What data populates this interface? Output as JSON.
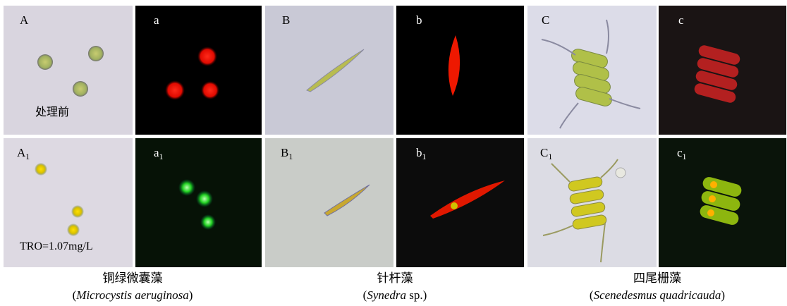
{
  "panels": {
    "A": {
      "label": "A",
      "note": "处理前"
    },
    "a": {
      "label": "a"
    },
    "B": {
      "label": "B"
    },
    "b": {
      "label": "b"
    },
    "C": {
      "label": "C"
    },
    "c": {
      "label": "c"
    },
    "A1": {
      "label": "A",
      "sub": "1",
      "note": "TRO=1.07mg/L"
    },
    "a1": {
      "label": "a",
      "sub": "1"
    },
    "B1": {
      "label": "B",
      "sub": "1"
    },
    "b1": {
      "label": "b",
      "sub": "1"
    },
    "C1": {
      "label": "C",
      "sub": "1"
    },
    "c1": {
      "label": "c",
      "sub": "1"
    }
  },
  "captions": [
    {
      "name": "铜绿微囊藻",
      "latin": [
        "(",
        "Microcystis aeruginosa",
        ")"
      ]
    },
    {
      "name": "针杆藻",
      "latin": [
        "(",
        "Synedra",
        " sp.)"
      ]
    },
    {
      "name": "四尾栅藻",
      "latin": [
        "(",
        "Scenedesmus quadricauda",
        ")"
      ]
    }
  ]
}
